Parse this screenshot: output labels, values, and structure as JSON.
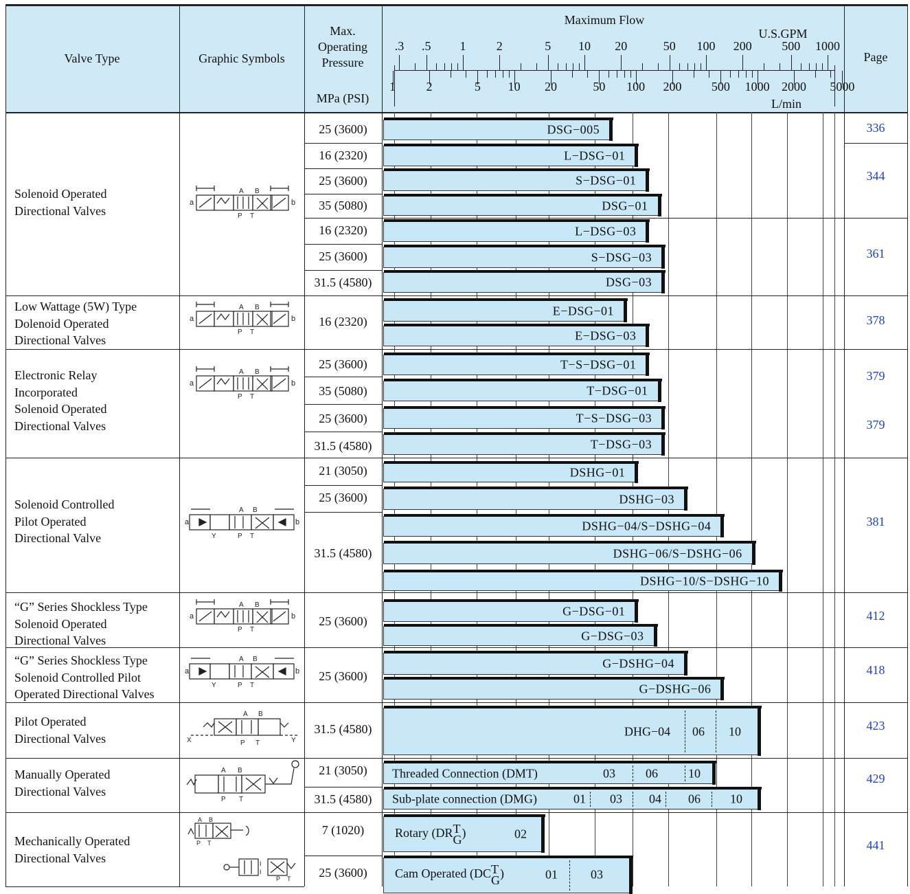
{
  "header": {
    "valve_type": "Valve Type",
    "graphic_symbols": "Graphic Symbols",
    "max_pressure_l1": "Max.",
    "max_pressure_l2": "Operating",
    "max_pressure_l3": "Pressure",
    "max_pressure_unit": "MPa (PSI)",
    "maximum_flow": "Maximum Flow",
    "gpm_unit": "U.S.GPM",
    "lmin_unit": "L/min",
    "page": "Page",
    "gpm_ticks": [
      ".3",
      ".5",
      "1",
      "2",
      "5",
      "10",
      "20",
      "50",
      "100",
      "200",
      "500",
      "1000"
    ],
    "lmin_ticks": [
      "1",
      "2",
      "5",
      "10",
      "20",
      "50",
      "100",
      "200",
      "500",
      "1000",
      "2000",
      "5000"
    ]
  },
  "groups": [
    {
      "name_lines": [
        "Solenoid Operated",
        "Directional Valves"
      ],
      "symbol": "4-way-solenoid-symbol"
    },
    {
      "name_lines": [
        "Low Wattage (5W) Type",
        "Dolenoid Operated",
        "Directional Valves"
      ],
      "symbol": "4-way-solenoid-symbol"
    },
    {
      "name_lines": [
        "Electronic Relay",
        "Incorporated",
        "Solenoid Operated",
        "Directional Valves"
      ],
      "symbol": "4-way-solenoid-symbol"
    },
    {
      "name_lines": [
        "Solenoid Controlled",
        "Pilot Operated",
        "Directional Valve"
      ],
      "symbol": "pilot-solenoid-symbol"
    },
    {
      "name_lines": [
        "“G” Series Shockless Type",
        "Solenoid Operated",
        "Directional Valves"
      ],
      "symbol": "4-way-solenoid-symbol"
    },
    {
      "name_lines": [
        "“G” Series Shockless Type",
        "Solenoid Controlled Pilot",
        "Operated Directional Valves"
      ],
      "symbol": "pilot-solenoid-symbol"
    },
    {
      "name_lines": [
        "Pilot Operated",
        "Directional Valves"
      ],
      "symbol": "pilot-operated-symbol"
    },
    {
      "name_lines": [
        "Manually Operated",
        "Directional Valves"
      ],
      "symbol": "manual-lever-symbol"
    },
    {
      "name_lines": [
        "Mechanically Operated",
        "Directional Valves"
      ],
      "symbol": "mechanical-symbol"
    }
  ],
  "pressures": [
    "25 (3600)",
    "16 (2320)",
    "25 (3600)",
    "35 (5080)",
    "16 (2320)",
    "25 (3600)",
    "31.5 (4580)",
    "16 (2320)",
    "25 (3600)",
    "35 (5080)",
    "25 (3600)",
    "31.5 (4580)",
    "21 (3050)",
    "25 (3600)",
    "31.5 (4580)",
    "25 (3600)",
    "25 (3600)",
    "31.5 (4580)",
    "21 (3050)",
    "31.5 (4580)",
    "7 (1020)",
    "25 (3600)"
  ],
  "pages": [
    "336",
    "344",
    "361",
    "378",
    "379",
    "379",
    "381",
    "412",
    "418",
    "423",
    "429",
    "441"
  ],
  "bars": [
    {
      "label": "DSG−005",
      "max_gpm": 16
    },
    {
      "label": "L−DSG−01",
      "max_gpm": 26
    },
    {
      "label": "S−DSG−01",
      "max_gpm": 32
    },
    {
      "label": "DSG−01",
      "max_gpm": 40
    },
    {
      "label": "L−DSG−03",
      "max_gpm": 32
    },
    {
      "label": "S−DSG−03",
      "max_gpm": 43
    },
    {
      "label": "DSG−03",
      "max_gpm": 43
    },
    {
      "label": "E−DSG−01",
      "max_gpm": 21
    },
    {
      "label": "E−DSG−03",
      "max_gpm": 32
    },
    {
      "label": "T−S−DSG−01",
      "max_gpm": 32
    },
    {
      "label": "T−DSG−01",
      "max_gpm": 40
    },
    {
      "label": "T−S−DSG−03",
      "max_gpm": 43
    },
    {
      "label": "T−DSG−03",
      "max_gpm": 43
    },
    {
      "label": "DSHG−01",
      "max_gpm": 26
    },
    {
      "label": "DSHG−03",
      "max_gpm": 66
    },
    {
      "label": "DSHG−04/S−DSHG−04",
      "max_gpm": 132
    },
    {
      "label": "DSHG−06/S−DSHG−06",
      "max_gpm": 238
    },
    {
      "label": "DSHG−10/S−DSHG−10",
      "max_gpm": 397
    },
    {
      "label": "G−DSG−01",
      "max_gpm": 26
    },
    {
      "label": "G−DSG−03",
      "max_gpm": 37
    },
    {
      "label": "G−DSHG−04",
      "max_gpm": 66
    },
    {
      "label": "G−DSHG−06",
      "max_gpm": 132
    }
  ],
  "segmented": {
    "dhg": {
      "label": "DHG−04",
      "segments": [
        "06",
        "10"
      ]
    },
    "dmt": {
      "label": "Threaded Connection (DMT)",
      "segments": [
        "03",
        "06",
        "10"
      ]
    },
    "dmg": {
      "label": "Sub-plate connection (DMG)",
      "segments": [
        "01",
        "03",
        "04",
        "06",
        "10"
      ]
    },
    "rotary": {
      "label": "Rotary (DR",
      "sup": "T",
      "sub": "G",
      "close": ")",
      "segments": [
        "02"
      ]
    },
    "cam": {
      "label": "Cam Operated (DC",
      "sup": "T",
      "sub": "G",
      "close": ")",
      "segments": [
        "01",
        "03"
      ]
    }
  }
}
